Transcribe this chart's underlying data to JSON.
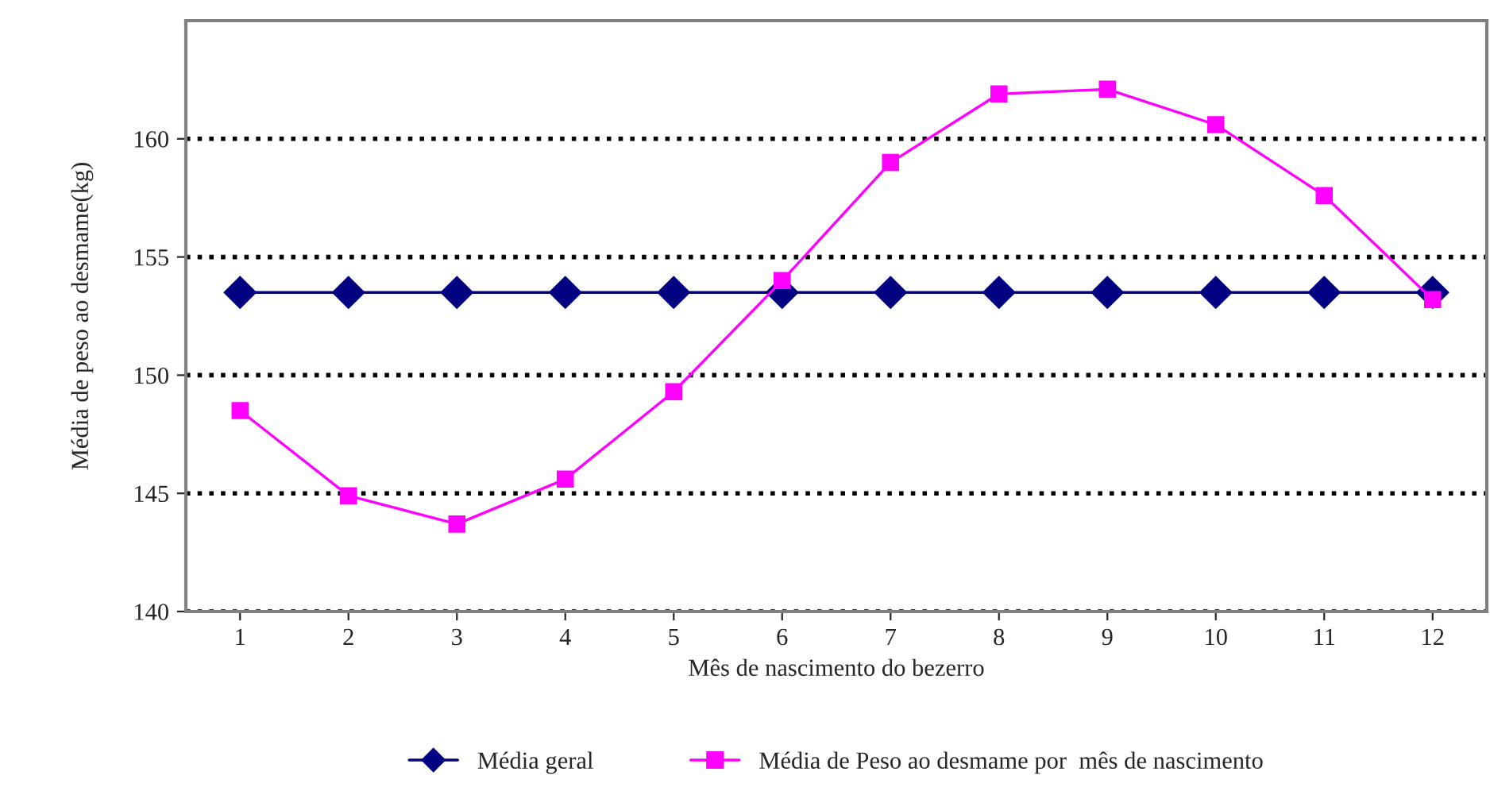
{
  "chart_data": {
    "type": "line",
    "xlabel": "Mês de nascimento do bezerro",
    "ylabel": "Média de peso ao desmame(kg)",
    "categories": [
      "1",
      "2",
      "3",
      "4",
      "5",
      "6",
      "7",
      "8",
      "9",
      "10",
      "11",
      "12"
    ],
    "series": [
      {
        "name": "Média geral",
        "color": "#000080",
        "marker": "diamond",
        "values": [
          153.5,
          153.5,
          153.5,
          153.5,
          153.5,
          153.5,
          153.5,
          153.5,
          153.5,
          153.5,
          153.5,
          153.5
        ]
      },
      {
        "name": "Média de Peso ao desmame por  mês de nascimento",
        "color": "#ff00ff",
        "marker": "square",
        "values": [
          148.5,
          144.9,
          143.7,
          145.6,
          149.3,
          154.0,
          159.0,
          161.9,
          162.1,
          160.6,
          157.6,
          153.2
        ]
      }
    ],
    "ylim": [
      140,
      165
    ],
    "yticks": [
      140,
      145,
      150,
      155,
      160
    ],
    "grid": "y",
    "legend": "bottom",
    "line_style": "solid"
  }
}
